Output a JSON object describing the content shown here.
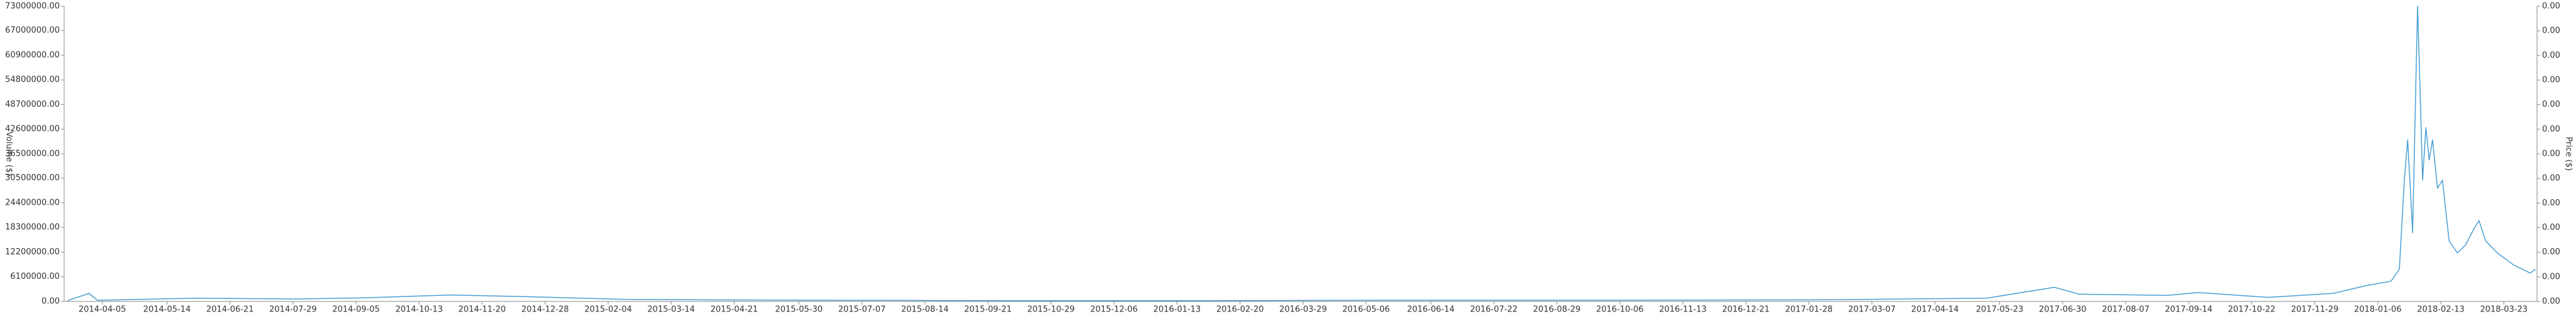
{
  "chart_data": {
    "type": "line",
    "y_label": "Volume ($)",
    "y2_label": "Price ($)",
    "xlim": [
      "2014-03-13",
      "2018-04-12"
    ],
    "xticks": [
      "2014-04-05",
      "2014-05-14",
      "2014-06-21",
      "2014-07-29",
      "2014-09-05",
      "2014-10-13",
      "2014-11-20",
      "2014-12-28",
      "2015-02-04",
      "2015-03-14",
      "2015-04-21",
      "2015-05-30",
      "2015-07-07",
      "2015-08-14",
      "2015-09-21",
      "2015-10-29",
      "2015-12-06",
      "2016-01-13",
      "2016-02-20",
      "2016-03-29",
      "2016-05-06",
      "2016-06-14",
      "2016-07-22",
      "2016-08-29",
      "2016-10-06",
      "2016-11-13",
      "2016-12-21",
      "2017-01-28",
      "2017-03-07",
      "2017-04-14",
      "2017-05-23",
      "2017-06-30",
      "2017-08-07",
      "2017-09-14",
      "2017-10-22",
      "2017-11-29",
      "2018-01-06",
      "2018-02-13",
      "2018-03-23"
    ],
    "ylim": [
      0,
      73000000
    ],
    "yticks": [
      {
        "value": 0,
        "label": "0.00"
      },
      {
        "value": 6100000,
        "label": "6100000.00"
      },
      {
        "value": 12200000,
        "label": "12200000.00"
      },
      {
        "value": 18300000,
        "label": "18300000.00"
      },
      {
        "value": 24400000,
        "label": "24400000.00"
      },
      {
        "value": 30500000,
        "label": "30500000.00"
      },
      {
        "value": 36500000,
        "label": "36500000.00"
      },
      {
        "value": 42600000,
        "label": "42600000.00"
      },
      {
        "value": 48700000,
        "label": "48700000.00"
      },
      {
        "value": 54800000,
        "label": "54800000.00"
      },
      {
        "value": 60900000,
        "label": "60900000.00"
      },
      {
        "value": 67000000,
        "label": "67000000.00"
      },
      {
        "value": 73000000,
        "label": "73000000.00"
      }
    ],
    "y2lim": [
      0,
      0.0048
    ],
    "y2ticks": [
      {
        "value": 0,
        "label": "0.00"
      },
      {
        "value": 0.0004,
        "label": "0.00"
      },
      {
        "value": 0.0008,
        "label": "0.00"
      },
      {
        "value": 0.0012,
        "label": "0.00"
      },
      {
        "value": 0.0016,
        "label": "0.00"
      },
      {
        "value": 0.002,
        "label": "0.00"
      },
      {
        "value": 0.0024,
        "label": "0.00"
      },
      {
        "value": 0.0028,
        "label": "0.00"
      },
      {
        "value": 0.0032,
        "label": "0.00"
      },
      {
        "value": 0.0036,
        "label": "0.00"
      },
      {
        "value": 0.004,
        "label": "0.00"
      },
      {
        "value": 0.0044,
        "label": "0.00"
      },
      {
        "value": 0.0048,
        "label": "0.00"
      }
    ],
    "x": [
      "2014-03-15",
      "2014-03-28",
      "2014-04-02",
      "2014-06-01",
      "2014-08-01",
      "2014-09-10",
      "2014-11-01",
      "2014-12-15",
      "2015-02-15",
      "2015-06-01",
      "2015-10-01",
      "2016-02-01",
      "2016-06-01",
      "2016-10-01",
      "2017-02-01",
      "2017-05-15",
      "2017-06-25",
      "2017-07-10",
      "2017-09-01",
      "2017-09-20",
      "2017-11-01",
      "2017-12-10",
      "2017-12-31",
      "2018-01-14",
      "2018-01-19",
      "2018-01-22",
      "2018-01-24",
      "2018-01-26",
      "2018-01-27",
      "2018-01-29",
      "2018-01-30",
      "2018-02-01",
      "2018-02-02",
      "2018-02-04",
      "2018-02-06",
      "2018-02-08",
      "2018-02-11",
      "2018-02-14",
      "2018-02-18",
      "2018-02-23",
      "2018-02-28",
      "2018-03-05",
      "2018-03-08",
      "2018-03-12",
      "2018-03-19",
      "2018-03-29",
      "2018-04-08",
      "2018-04-11"
    ],
    "series": [
      {
        "color": "#4a9fd4",
        "values": [
          200000,
          2000000,
          300000,
          800000,
          600000,
          900000,
          1600000,
          1200000,
          500000,
          300000,
          200000,
          200000,
          300000,
          300000,
          400000,
          800000,
          3500000,
          1800000,
          1500000,
          2200000,
          1000000,
          2000000,
          4000000,
          5000000,
          8000000,
          30000000,
          40000000,
          25000000,
          17000000,
          55000000,
          73000000,
          45000000,
          30000000,
          43000000,
          35000000,
          40000000,
          28000000,
          30000000,
          15000000,
          12000000,
          14000000,
          18000000,
          20000000,
          15000000,
          12000000,
          9000000,
          7000000,
          8000000
        ]
      }
    ]
  }
}
